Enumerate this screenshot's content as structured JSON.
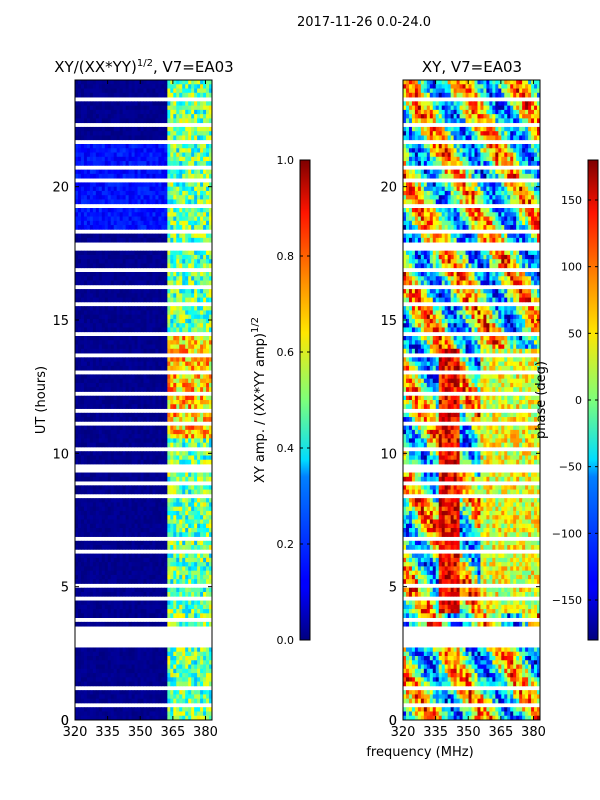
{
  "page_title": "2017-11-26 0.0-24.0",
  "xlabel_shared": "frequency (MHz)",
  "chart_data": [
    {
      "type": "heatmap",
      "title_main": "XY/(XX*YY)",
      "title_sup": "1/2",
      "title_rest": ", V7=EA03",
      "xlabel": "",
      "ylabel": "UT (hours)",
      "xlim": [
        320,
        383
      ],
      "ylim": [
        0,
        24
      ],
      "xticks": [
        320,
        335,
        350,
        365,
        380
      ],
      "yticks": [
        0,
        5,
        10,
        15,
        20
      ],
      "colorbar": {
        "label_main": "XY amp. / (XX*YY amp)",
        "label_sup": "1/2",
        "range": [
          0.0,
          1.0
        ],
        "ticks": [
          "0.0",
          "0.2",
          "0.4",
          "0.6",
          "0.8",
          "1.0"
        ],
        "colormap": "jet"
      }
    },
    {
      "type": "heatmap",
      "title_main": "XY, V7=EA03",
      "xlabel": "frequency (MHz)",
      "ylabel": "",
      "xlim": [
        320,
        383
      ],
      "ylim": [
        0,
        24
      ],
      "xticks": [
        320,
        335,
        350,
        365,
        380
      ],
      "yticks": [
        0,
        5,
        10,
        15,
        20
      ],
      "colorbar": {
        "label_main": "phase (deg)",
        "range": [
          -180,
          180
        ],
        "ticks": [
          "150",
          "100",
          "50",
          "0",
          "−50",
          "−100",
          "−150"
        ],
        "colormap": "jet"
      }
    }
  ]
}
